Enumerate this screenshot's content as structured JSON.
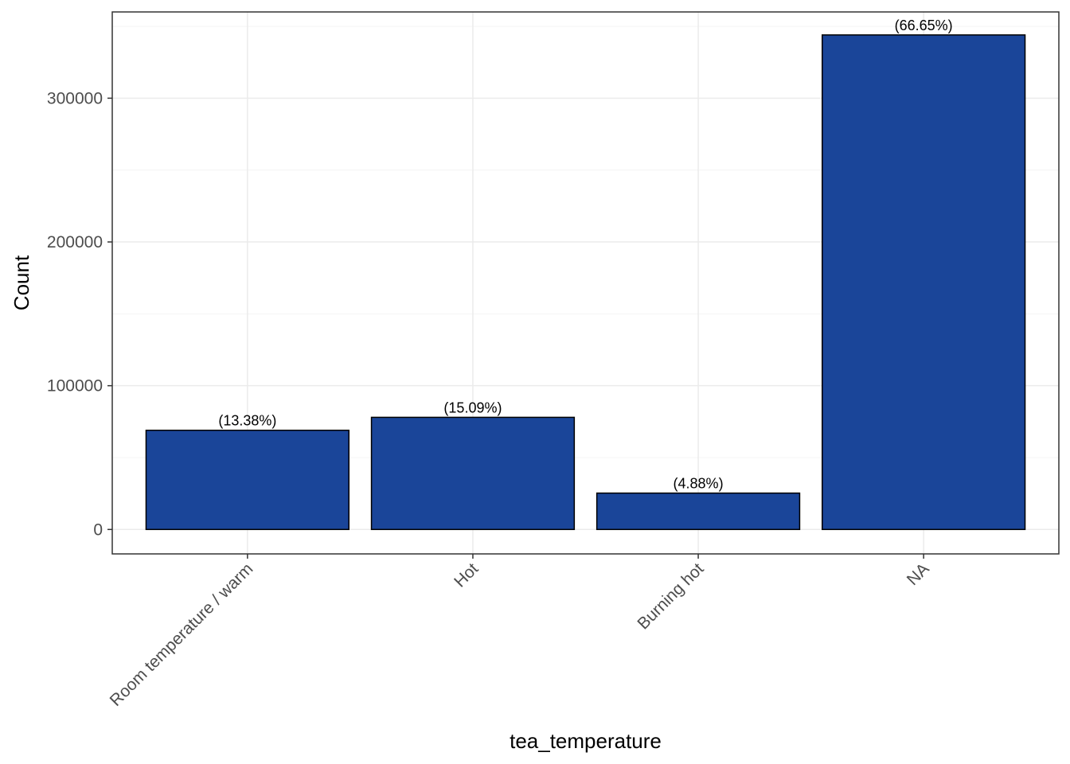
{
  "chart_data": {
    "type": "bar",
    "xlabel": "tea_temperature",
    "ylabel": "Count",
    "categories": [
      "Room temperature / warm",
      "Hot",
      "Burning hot",
      "NA"
    ],
    "values": [
      69000,
      78000,
      25300,
      344000
    ],
    "data_labels": [
      "(13.38%)",
      "(15.09%)",
      "(4.88%)",
      "(66.65%)"
    ],
    "yticks": [
      0,
      100000,
      200000,
      300000
    ],
    "ytick_labels": [
      "0",
      "100000",
      "200000",
      "300000"
    ],
    "ylim": [
      -17000,
      360000
    ],
    "grid": true,
    "legend": "none",
    "colors": {
      "bar_fill": "#1a4599",
      "bar_stroke": "#000000",
      "grid_major": "#ebebeb",
      "grid_minor": "#f4f4f4",
      "panel_border": "#333333"
    }
  }
}
